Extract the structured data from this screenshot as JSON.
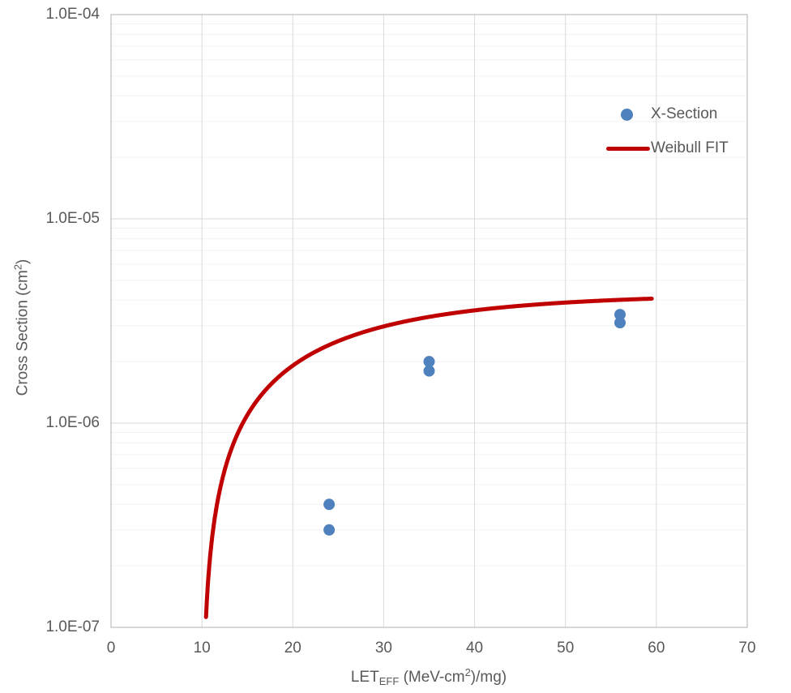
{
  "chart_data": {
    "type": "scatter",
    "title": "",
    "xlabel": {
      "text": "LET_EFF (MeV-cm2)/mg)",
      "prefix": "LET",
      "sub": "EFF",
      "mid": " (MeV-cm",
      "sup": "2",
      "suffix": ")/mg)"
    },
    "ylabel": {
      "text": "Cross Section (cm2)",
      "prefix": "Cross Section (cm",
      "sup": "2",
      "suffix": ")"
    },
    "x_axis": {
      "min": 0,
      "max": 70,
      "ticks": [
        0,
        10,
        20,
        30,
        40,
        50,
        60,
        70
      ],
      "grid": "major"
    },
    "y_axis": {
      "scale": "log",
      "min": 1e-07,
      "max": 0.0001,
      "tick_labels": [
        "1.0E-04",
        "1.0E-05",
        "1.0E-06",
        "1.0E-07"
      ],
      "tick_values": [
        0.0001,
        1e-05,
        1e-06,
        1e-07
      ],
      "grid": "major+minor"
    },
    "series": [
      {
        "name": "X-Section",
        "type": "scatter",
        "color": "#4E81BD",
        "marker": "dot",
        "points": [
          [
            24,
            4e-07
          ],
          [
            24,
            3e-07
          ],
          [
            35,
            2e-06
          ],
          [
            35,
            1.8e-06
          ],
          [
            56,
            3.4e-06
          ],
          [
            56,
            3.1e-06
          ]
        ]
      },
      {
        "name": "Weibull FIT",
        "type": "line",
        "color": "#C00000",
        "weibull_fit": {
          "sigma_sat": 4.3e-06,
          "let_threshold": 10,
          "width": 17,
          "shape": 1.0,
          "x_end": 59.5
        },
        "reference_points": [
          [
            10.4,
            1e-07
          ],
          [
            14.4,
            1e-06
          ],
          [
            20,
            1.9e-06
          ],
          [
            30,
            2.95e-06
          ],
          [
            40,
            3.55e-06
          ],
          [
            50,
            3.9e-06
          ],
          [
            59.5,
            4.1e-06
          ]
        ]
      }
    ],
    "legend": {
      "position": "inside-top-right",
      "entries": [
        {
          "label": "X-Section",
          "marker": "dot",
          "color": "#4E81BD"
        },
        {
          "label": "Weibull FIT",
          "marker": "line",
          "color": "#C00000"
        }
      ]
    },
    "grid_colors": {
      "major": "#D9D9D9",
      "minor": "#F2F2F2",
      "border": "#BFBFBF"
    }
  }
}
